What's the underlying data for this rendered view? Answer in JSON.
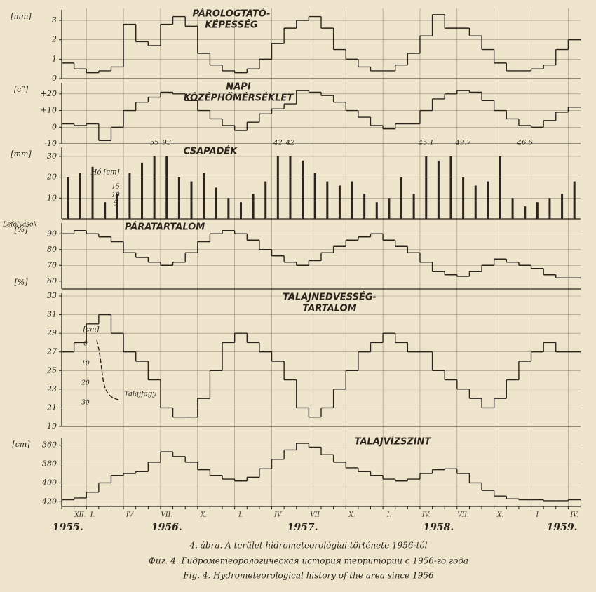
{
  "chart_data": [
    {
      "type": "line",
      "step": true,
      "title": [
        "PÁROLOGTATÓ-",
        "KÉPESSÉG"
      ],
      "unit": "[mm]",
      "color": "#2a241c",
      "ylim": [
        0,
        3.4
      ],
      "yticks": [
        0,
        1,
        2,
        3
      ],
      "values": [
        0.8,
        0.5,
        0.3,
        0.4,
        0.6,
        2.8,
        1.9,
        1.7,
        2.8,
        3.2,
        2.7,
        1.3,
        0.7,
        0.4,
        0.3,
        0.5,
        1.0,
        1.8,
        2.6,
        3.0,
        3.2,
        2.6,
        1.5,
        1.0,
        0.6,
        0.4,
        0.4,
        0.7,
        1.3,
        2.2,
        3.3,
        2.6,
        2.6,
        2.2,
        1.5,
        0.8,
        0.4,
        0.4,
        0.5,
        0.7,
        1.5,
        2.0
      ]
    },
    {
      "type": "line",
      "step": true,
      "title": [
        "NAPI",
        "KÖZÉPHŐMÉRSÉKLET"
      ],
      "unit": "[c°]",
      "color": "#2a241c",
      "ylim": [
        -10,
        25
      ],
      "yticks": [
        -10,
        0,
        {
          "value": 10,
          "label": "+10"
        },
        {
          "value": 20,
          "label": "+20"
        }
      ],
      "values": [
        2,
        1,
        2,
        -8,
        0,
        10,
        15,
        18,
        21,
        20,
        16,
        10,
        5,
        1,
        -2,
        3,
        8,
        11,
        14,
        22,
        21,
        19,
        15,
        10,
        6,
        1,
        -1,
        2,
        2,
        10,
        17,
        20,
        22,
        21,
        16,
        10,
        5,
        1,
        0,
        4,
        9,
        12
      ]
    },
    {
      "type": "bar",
      "title": [
        "CSAPADÉK"
      ],
      "unit": "[mm]",
      "side_label": "Lefolyások",
      "color": "#2a241c",
      "ylim": [
        0,
        33
      ],
      "yticks": [
        10,
        20,
        30
      ],
      "values": [
        20,
        22,
        25,
        8,
        12,
        22,
        27,
        30,
        30,
        20,
        18,
        22,
        15,
        10,
        8,
        12,
        18,
        30,
        30,
        28,
        22,
        18,
        16,
        18,
        12,
        8,
        10,
        20,
        12,
        30,
        28,
        30,
        20,
        16,
        18,
        30,
        10,
        6,
        8,
        10,
        12,
        18
      ],
      "annotations": [
        {
          "text": "55",
          "at": 7
        },
        {
          "text": "93",
          "at": 8
        },
        {
          "text": "42",
          "at": 17
        },
        {
          "text": "42",
          "at": 18
        },
        {
          "text": "45.1",
          "at": 29
        },
        {
          "text": "49.7",
          "at": 32
        },
        {
          "text": "46.6",
          "at": 37
        }
      ],
      "inset": {
        "label": "Hó [cm]",
        "ticks": [
          15,
          10,
          5
        ]
      }
    },
    {
      "type": "line",
      "step": true,
      "title": [
        "PÁRATARTALOM"
      ],
      "unit": "[%]",
      "color": "#2a241c",
      "ylim": [
        55,
        95
      ],
      "yticks": [
        60,
        70,
        80,
        90
      ],
      "values": [
        90,
        92,
        90,
        88,
        85,
        78,
        75,
        72,
        70,
        72,
        78,
        85,
        90,
        92,
        90,
        86,
        80,
        76,
        72,
        70,
        73,
        78,
        82,
        86,
        88,
        90,
        86,
        82,
        78,
        72,
        66,
        64,
        63,
        66,
        70,
        74,
        72,
        70,
        68,
        64,
        62,
        62
      ]
    },
    {
      "type": "line",
      "step": true,
      "title": [
        "TALAJNEDVESSÉG-",
        "TARTALOM"
      ],
      "unit": "[%]",
      "color": "#2a241c",
      "ylim": [
        19,
        33
      ],
      "yticks": [
        19,
        21,
        23,
        25,
        27,
        29,
        31,
        33
      ],
      "values": [
        27,
        28,
        30,
        31,
        29,
        27,
        26,
        24,
        21,
        20,
        20,
        22,
        25,
        28,
        29,
        28,
        27,
        26,
        24,
        21,
        20,
        21,
        23,
        25,
        27,
        28,
        29,
        28,
        27,
        27,
        25,
        24,
        23,
        22,
        21,
        22,
        24,
        26,
        27,
        28,
        27,
        27
      ],
      "inset": {
        "label": "[cm]",
        "ticks": [
          0,
          10,
          20,
          30
        ],
        "note": "Talajfagy"
      }
    },
    {
      "type": "line",
      "step": true,
      "title": [
        "TALAJVÍZSZINT"
      ],
      "unit": "[cm]",
      "color": "#2a241c",
      "ylim": [
        425,
        355
      ],
      "yticks": [
        360,
        380,
        400,
        420
      ],
      "values": [
        418,
        416,
        410,
        400,
        392,
        390,
        388,
        378,
        367,
        372,
        378,
        386,
        392,
        396,
        398,
        394,
        385,
        375,
        365,
        358,
        362,
        370,
        378,
        384,
        388,
        392,
        396,
        398,
        396,
        390,
        386,
        385,
        390,
        400,
        408,
        414,
        417,
        418,
        418,
        419,
        419,
        418
      ],
      "categories": [
        null,
        "XII.",
        "I.",
        null,
        null,
        "IV",
        null,
        null,
        "VII.",
        null,
        null,
        "X.",
        null,
        null,
        "I.",
        null,
        null,
        "IV",
        null,
        null,
        "VII",
        null,
        null,
        "X.",
        null,
        null,
        "I.",
        null,
        null,
        "IV.",
        null,
        null,
        "VII.",
        null,
        null,
        "X.",
        null,
        null,
        "I",
        null,
        null,
        "IV."
      ],
      "year_labels": [
        "1955.",
        null,
        null,
        null,
        null,
        null,
        null,
        null,
        "1956.",
        null,
        null,
        null,
        null,
        null,
        null,
        null,
        null,
        null,
        null,
        "1957.",
        null,
        null,
        null,
        null,
        null,
        null,
        null,
        null,
        null,
        null,
        "1958.",
        null,
        null,
        null,
        null,
        null,
        null,
        null,
        null,
        null,
        "1959.",
        null
      ]
    }
  ],
  "caption": [
    "4. ábra. A terület hidrometeorológiai története 1956-tól",
    "Фиг. 4. Гидрометеорологическая история территории с 1956-го года",
    "Fig. 4. Hydrometeorological history of the area since 1956"
  ]
}
